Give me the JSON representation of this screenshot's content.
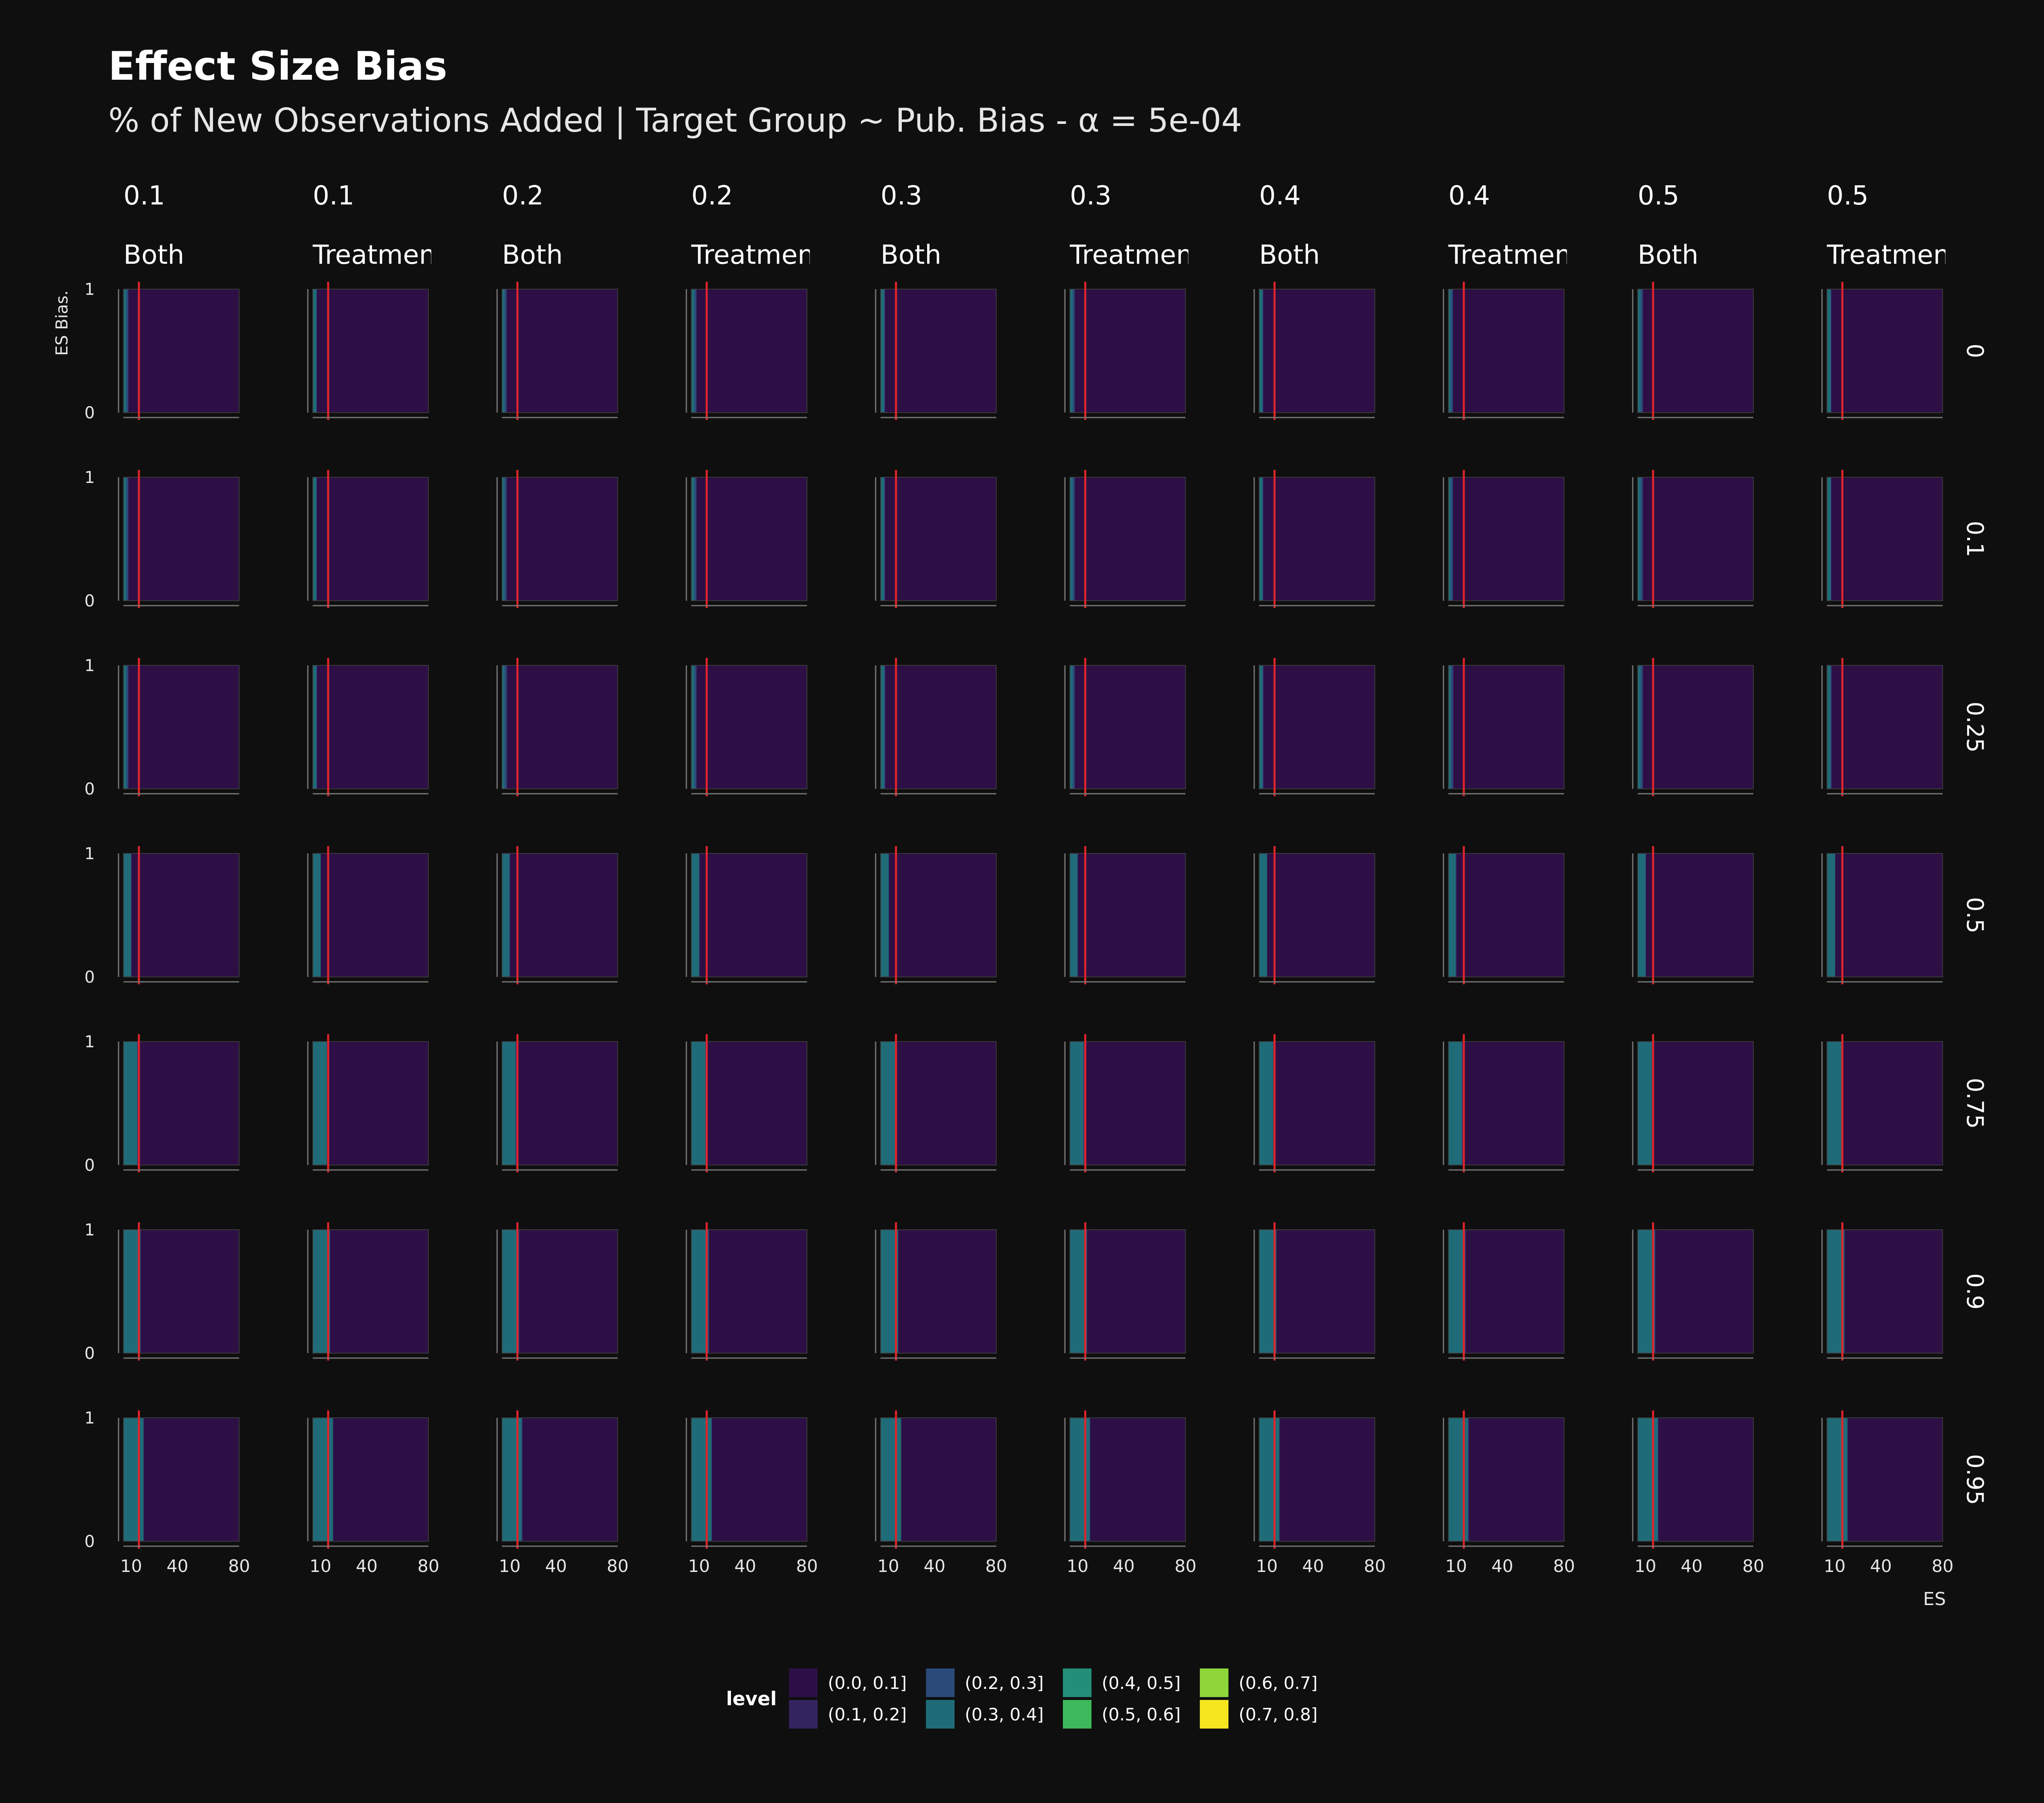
{
  "title": "Effect Size Bias",
  "subtitle": "% of New Observations Added | Target Group ~ Pub. Bias - α = 5e-04",
  "colors": {
    "background": "#0f0f0f",
    "text": "#ffffff",
    "marker": "#e0242b",
    "levels": [
      "#2d0f45",
      "#33245f",
      "#2b4a7a",
      "#1f6c78",
      "#238f7a",
      "#3db85a",
      "#8ed63a",
      "#f5e61f"
    ]
  },
  "chart_data": {
    "type": "heatmap",
    "subtype": "faceted filled contour",
    "xlabel": "ES",
    "ylabel": "ES Bias.",
    "x_ticks": [
      "10",
      "40",
      "80"
    ],
    "y_ticks": [
      "0",
      "1"
    ],
    "x_range": [
      5,
      80
    ],
    "y_range": [
      0,
      1
    ],
    "reference_line_x": 15,
    "columns": [
      {
        "value": "0.1",
        "group": "Both"
      },
      {
        "value": "0.1",
        "group": "Treatment"
      },
      {
        "value": "0.2",
        "group": "Both"
      },
      {
        "value": "0.2",
        "group": "Treatment"
      },
      {
        "value": "0.3",
        "group": "Both"
      },
      {
        "value": "0.3",
        "group": "Treatment"
      },
      {
        "value": "0.4",
        "group": "Both"
      },
      {
        "value": "0.4",
        "group": "Treatment"
      },
      {
        "value": "0.5",
        "group": "Both"
      },
      {
        "value": "0.5",
        "group": "Treatment"
      }
    ],
    "rows": [
      "0",
      "0.1",
      "0.25",
      "0.5",
      "0.75",
      "0.9",
      "0.95"
    ],
    "legend": {
      "title": "level",
      "placement": "bottom",
      "entries": [
        "(0.0, 0.1]",
        "(0.1, 0.2]",
        "(0.2, 0.3]",
        "(0.3, 0.4]",
        "(0.4, 0.5]",
        "(0.5, 0.6]",
        "(0.6, 0.7]",
        "(0.7, 0.8]"
      ]
    },
    "level_boundaries_by_row": [
      [
        [
          [
            0.6,
            0.78
          ],
          [
            2.5,
            7.5
          ],
          [
            12,
            25
          ]
        ],
        [
          [
            0.5,
            0.72
          ],
          [
            2.5,
            8
          ],
          [
            12,
            22
          ]
        ],
        [
          [
            0.5,
            0.72
          ],
          [
            2,
            7
          ],
          [
            10,
            20
          ]
        ]
      ],
      [
        [
          [
            0.6,
            0.78
          ],
          [
            2.5,
            7.5
          ],
          [
            12,
            25
          ]
        ],
        [
          [
            0.5,
            0.72
          ],
          [
            2.5,
            8
          ],
          [
            12,
            22
          ]
        ],
        [
          [
            0.5,
            0.72
          ],
          [
            2,
            7
          ],
          [
            10,
            20
          ]
        ]
      ],
      [
        [
          [
            0.55,
            0.75
          ],
          [
            2.5,
            8
          ],
          [
            14,
            22
          ]
        ],
        [
          [
            0.45,
            0.68
          ],
          [
            2.5,
            8
          ],
          [
            14,
            22
          ]
        ],
        [
          [
            0.5,
            0.7
          ],
          [
            2,
            7
          ],
          [
            12,
            20
          ]
        ]
      ],
      [
        [
          [
            0.7,
            0.85
          ],
          [
            4,
            10
          ],
          [
            18,
            26
          ]
        ],
        [
          [
            0.6,
            0.75
          ],
          [
            4,
            10
          ],
          [
            16,
            26
          ]
        ],
        [
          [
            0.6,
            0.75
          ],
          [
            3,
            10
          ],
          [
            14,
            26
          ]
        ]
      ],
      [
        [
          [
            0.85,
            0.88
          ],
          [
            6,
            14
          ],
          [
            28,
            38
          ]
        ],
        [
          [
            0.8,
            0.8
          ],
          [
            6,
            14
          ],
          [
            28,
            38
          ]
        ],
        [
          [
            0.78,
            0.8
          ],
          [
            6,
            14
          ],
          [
            26,
            38
          ]
        ],
        [
          [
            0.92,
            0.92
          ],
          [
            1,
            1
          ],
          [
            1,
            1
          ]
        ]
      ],
      [
        [
          [
            0.9,
            0.92
          ],
          [
            6,
            16
          ],
          [
            30,
            40
          ]
        ],
        [
          [
            0.85,
            0.85
          ],
          [
            6,
            16
          ],
          [
            30,
            40
          ]
        ],
        [
          [
            0.82,
            0.82
          ],
          [
            6,
            16
          ],
          [
            28,
            40
          ]
        ],
        [
          [
            0.97,
            0.97
          ],
          [
            1,
            4
          ],
          [
            2,
            8
          ]
        ],
        [
          [
            0.98,
            0.98
          ],
          [
            1,
            1
          ],
          [
            1,
            3
          ]
        ]
      ],
      [
        [
          [
            0.92,
            0.94
          ],
          [
            6,
            18
          ],
          [
            32,
            42
          ]
        ],
        [
          [
            0.88,
            0.88
          ],
          [
            6,
            18
          ],
          [
            32,
            42
          ]
        ],
        [
          [
            0.85,
            0.85
          ],
          [
            6,
            18
          ],
          [
            30,
            42
          ]
        ],
        [
          [
            0.98,
            0.98
          ],
          [
            1,
            4
          ],
          [
            2,
            10
          ]
        ],
        [
          [
            0.99,
            0.99
          ],
          [
            1,
            2
          ],
          [
            2,
            5
          ]
        ],
        [
          [
            0.995,
            0.995
          ],
          [
            1,
            1
          ],
          [
            1,
            2
          ]
        ]
      ]
    ]
  }
}
